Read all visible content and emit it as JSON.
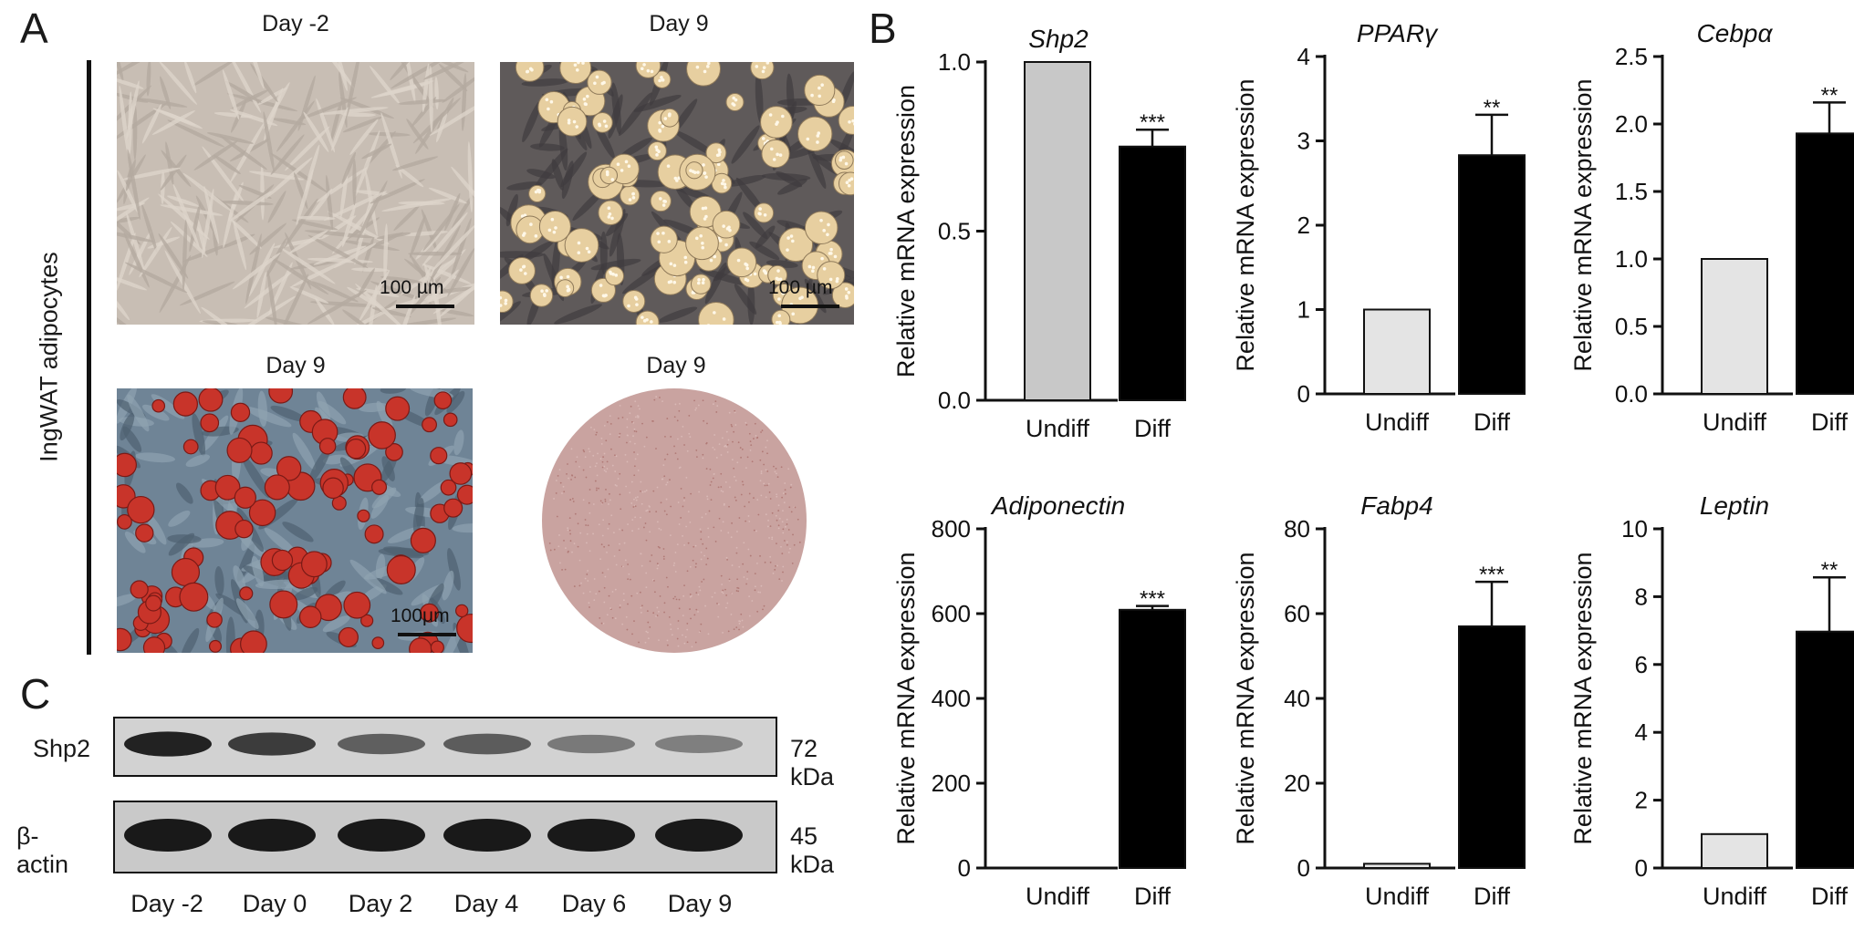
{
  "panel_letters": [
    "A",
    "B",
    "C"
  ],
  "panel_a": {
    "side_label": "IngWAT adipocytes",
    "images": [
      {
        "label": "Day -2",
        "scale": "100 µm",
        "kind": "undifferentiated-fibroblasts"
      },
      {
        "label": "Day 9",
        "scale": "100 µm",
        "kind": "lipid-droplet-adipocytes"
      },
      {
        "label": "Day 9",
        "scale": "100μm",
        "kind": "oil-red-o-stained-cells"
      },
      {
        "label": "Day 9",
        "kind": "oil-red-o-stained-well"
      }
    ],
    "colors": {
      "fibroblast_bg": "#c8beb4",
      "adipocyte_bg": "#5f5a5a",
      "droplet": "#e7cfa0",
      "stain_red": "#c8342a",
      "stain_bg": "#6f8496",
      "well": "#c9a3a0"
    }
  },
  "panel_c": {
    "rows": [
      {
        "protein": "Shp2",
        "kda": "72 kDa",
        "relative_intensity": [
          0.95,
          0.8,
          0.6,
          0.62,
          0.45,
          0.42
        ]
      },
      {
        "protein": "β-actin",
        "kda": "45 kDa",
        "relative_intensity": [
          1.0,
          1.0,
          1.0,
          1.0,
          1.0,
          1.0
        ]
      }
    ],
    "lanes": [
      "Day -2",
      "Day 0",
      "Day 2",
      "Day 4",
      "Day 6",
      "Day 9"
    ]
  },
  "chart_data": [
    {
      "type": "bar",
      "title": "Shp2",
      "ylabel": "Relative mRNA expression",
      "categories": [
        "Undiff",
        "Diff"
      ],
      "values": [
        1.0,
        0.75
      ],
      "errors": [
        0,
        0.05
      ],
      "significance": [
        "",
        "***"
      ],
      "ylim": [
        0,
        1.0
      ],
      "yticks": [
        0.0,
        0.5,
        1.0
      ],
      "ytick_labels": [
        "0.0",
        "0.5",
        "1.0"
      ],
      "bar_colors": [
        "#c8c8c8",
        "#000000"
      ]
    },
    {
      "type": "bar",
      "title": "PPARγ",
      "ylabel": "Relative mRNA expression",
      "categories": [
        "Undiff",
        "Diff"
      ],
      "values": [
        1.0,
        2.83
      ],
      "errors": [
        0,
        0.48
      ],
      "significance": [
        "",
        "**"
      ],
      "ylim": [
        0,
        4
      ],
      "yticks": [
        0,
        1,
        2,
        3,
        4
      ],
      "ytick_labels": [
        "0",
        "1",
        "2",
        "3",
        "4"
      ],
      "bar_colors": [
        "#e4e4e4",
        "#000000"
      ]
    },
    {
      "type": "bar",
      "title": "Cebpα",
      "ylabel": "Relative mRNA expression",
      "categories": [
        "Undiff",
        "Diff"
      ],
      "values": [
        1.0,
        1.93
      ],
      "errors": [
        0,
        0.23
      ],
      "significance": [
        "",
        "**"
      ],
      "ylim": [
        0,
        2.5
      ],
      "yticks": [
        0.0,
        0.5,
        1.0,
        1.5,
        2.0,
        2.5
      ],
      "ytick_labels": [
        "0.0",
        "0.5",
        "1.0",
        "1.5",
        "2.0",
        "2.5"
      ],
      "bar_colors": [
        "#e4e4e4",
        "#000000"
      ]
    },
    {
      "type": "bar",
      "title": "Adiponectin",
      "ylabel": "Relative mRNA expression",
      "categories": [
        "Undiff",
        "Diff"
      ],
      "values": [
        1.0,
        609
      ],
      "errors": [
        0,
        9
      ],
      "significance": [
        "",
        "***"
      ],
      "ylim": [
        0,
        800
      ],
      "yticks": [
        0,
        200,
        400,
        600,
        800
      ],
      "ytick_labels": [
        "0",
        "200",
        "400",
        "600",
        "800"
      ],
      "bar_colors": [
        "#e4e4e4",
        "#000000"
      ]
    },
    {
      "type": "bar",
      "title": "Fabp4",
      "ylabel": "Relative mRNA expression",
      "categories": [
        "Undiff",
        "Diff"
      ],
      "values": [
        1.0,
        57
      ],
      "errors": [
        0,
        10.5
      ],
      "significance": [
        "",
        "***"
      ],
      "ylim": [
        0,
        80
      ],
      "yticks": [
        0,
        20,
        40,
        60,
        80
      ],
      "ytick_labels": [
        "0",
        "20",
        "40",
        "60",
        "80"
      ],
      "bar_colors": [
        "#e4e4e4",
        "#000000"
      ]
    },
    {
      "type": "bar",
      "title": "Leptin",
      "ylabel": "Relative mRNA expression",
      "categories": [
        "Undiff",
        "Diff"
      ],
      "values": [
        1.0,
        6.97
      ],
      "errors": [
        0,
        1.6
      ],
      "significance": [
        "",
        "**"
      ],
      "ylim": [
        0,
        10
      ],
      "yticks": [
        0,
        2,
        4,
        6,
        8,
        10
      ],
      "ytick_labels": [
        "0",
        "2",
        "4",
        "6",
        "8",
        "10"
      ],
      "bar_colors": [
        "#e4e4e4",
        "#000000"
      ]
    }
  ]
}
